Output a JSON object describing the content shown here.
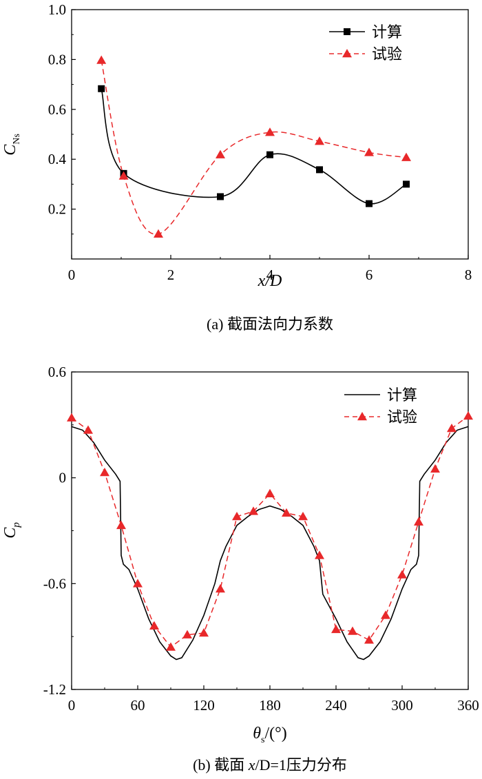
{
  "chart_data": [
    {
      "type": "line",
      "caption_prefix": "(a) ",
      "caption_text": "截面法向力系数",
      "xlabel_italic": "x",
      "xlabel_rest": "/D",
      "ylabel_main": "C",
      "ylabel_sub": "Ns",
      "xlim": [
        0,
        8
      ],
      "ylim": [
        0,
        1.0
      ],
      "xticks": [
        0,
        2,
        4,
        6,
        8
      ],
      "xtick_labels": [
        "0",
        "2",
        "4",
        "6",
        "8"
      ],
      "yticks": [
        0.2,
        0.4,
        0.6,
        0.8,
        1.0
      ],
      "ytick_labels": [
        "0.2",
        "0.4",
        "0.6",
        "0.8",
        "1.0"
      ],
      "legend_position": "top-right",
      "series": [
        {
          "name": "计算",
          "color": "#000000",
          "line": "solid",
          "marker": "square",
          "x": [
            0.6,
            1.05,
            3.0,
            4.0,
            5.0,
            6.0,
            6.75
          ],
          "y": [
            0.683,
            0.343,
            0.25,
            0.418,
            0.358,
            0.222,
            0.3
          ]
        },
        {
          "name": "试验",
          "color": "#e8282a",
          "line": "dashed",
          "marker": "triangle",
          "x": [
            0.6,
            1.05,
            1.75,
            3.0,
            4.0,
            5.0,
            6.0,
            6.75
          ],
          "y": [
            0.797,
            0.333,
            0.1,
            0.418,
            0.508,
            0.472,
            0.427,
            0.407
          ]
        }
      ]
    },
    {
      "type": "line",
      "caption_prefix": "(b) 截面 ",
      "caption_italic": "x",
      "caption_rest": "/D=1",
      "caption_suffix": "压力分布",
      "xlabel_main": "θ",
      "xlabel_sub": "s",
      "xlabel_unit": "/(°)",
      "ylabel_main": "C",
      "ylabel_sub": "p",
      "xlim": [
        0,
        360
      ],
      "ylim": [
        -1.2,
        0.6
      ],
      "xticks": [
        0,
        60,
        120,
        180,
        240,
        300,
        360
      ],
      "xtick_labels": [
        "0",
        "60",
        "120",
        "180",
        "240",
        "300",
        "360"
      ],
      "yticks": [
        -1.2,
        -0.6,
        0,
        0.6
      ],
      "ytick_labels": [
        "-1.2",
        "-0.6",
        "0",
        "0.6"
      ],
      "legend_position": "top-right",
      "series": [
        {
          "name": "计算",
          "color": "#000000",
          "line": "solid",
          "marker": "none",
          "x": [
            0,
            10,
            20,
            30,
            40,
            44,
            45,
            47,
            52,
            60,
            70,
            80,
            90,
            95,
            100,
            110,
            120,
            130,
            135,
            140,
            150,
            160,
            170,
            180,
            190,
            200,
            210,
            220,
            225,
            228,
            240,
            250,
            260,
            265,
            270,
            280,
            290,
            300,
            308,
            313,
            315,
            316,
            320,
            330,
            340,
            350,
            360
          ],
          "y": [
            0.29,
            0.27,
            0.2,
            0.1,
            0.02,
            -0.02,
            -0.44,
            -0.49,
            -0.52,
            -0.63,
            -0.8,
            -0.93,
            -1.01,
            -1.03,
            -1.02,
            -0.92,
            -0.78,
            -0.6,
            -0.47,
            -0.39,
            -0.27,
            -0.22,
            -0.18,
            -0.16,
            -0.18,
            -0.22,
            -0.27,
            -0.39,
            -0.47,
            -0.66,
            -0.8,
            -0.93,
            -1.02,
            -1.03,
            -1.01,
            -0.93,
            -0.8,
            -0.63,
            -0.52,
            -0.49,
            -0.44,
            -0.02,
            0.02,
            0.1,
            0.2,
            0.27,
            0.29
          ]
        },
        {
          "name": "试验",
          "color": "#e8282a",
          "line": "dashed",
          "marker": "triangle",
          "x": [
            0,
            15,
            30,
            45,
            60,
            75,
            90,
            105,
            120,
            135,
            150,
            165,
            180,
            195,
            210,
            225,
            240,
            255,
            270,
            285,
            300,
            315,
            330,
            345,
            360
          ],
          "y": [
            0.34,
            0.27,
            0.03,
            -0.27,
            -0.6,
            -0.84,
            -0.96,
            -0.89,
            -0.88,
            -0.63,
            -0.22,
            -0.19,
            -0.09,
            -0.2,
            -0.22,
            -0.44,
            -0.86,
            -0.87,
            -0.92,
            -0.78,
            -0.55,
            -0.25,
            0.05,
            0.28,
            0.35
          ]
        }
      ]
    }
  ]
}
